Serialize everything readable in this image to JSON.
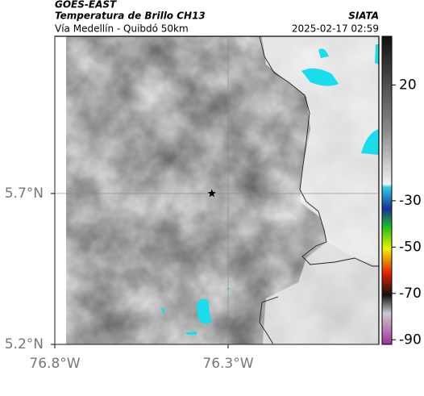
{
  "header": {
    "source": "GOES-EAST",
    "product": "Temperatura de Brillo CH13",
    "region": "Vía Medellín - Quibdó 50km",
    "agency": "SIATA",
    "timestamp": "2025-02-17 02:59"
  },
  "map": {
    "xlim": [
      -76.8,
      -75.865
    ],
    "ylim": [
      5.2,
      6.221
    ],
    "xticks": [
      {
        "value": -76.8,
        "label": "76.8°W"
      },
      {
        "value": -76.3,
        "label": "76.3°W"
      }
    ],
    "yticks": [
      {
        "value": 5.7,
        "label": "5.7°N"
      },
      {
        "value": 5.2,
        "label": "5.2°N"
      }
    ],
    "grid": true,
    "marker": {
      "lon": -76.347,
      "lat": 5.7
    }
  },
  "colorbar": {
    "lim": [
      -92,
      41
    ],
    "ticks": [
      20,
      -30,
      -50,
      -70,
      -90
    ]
  }
}
